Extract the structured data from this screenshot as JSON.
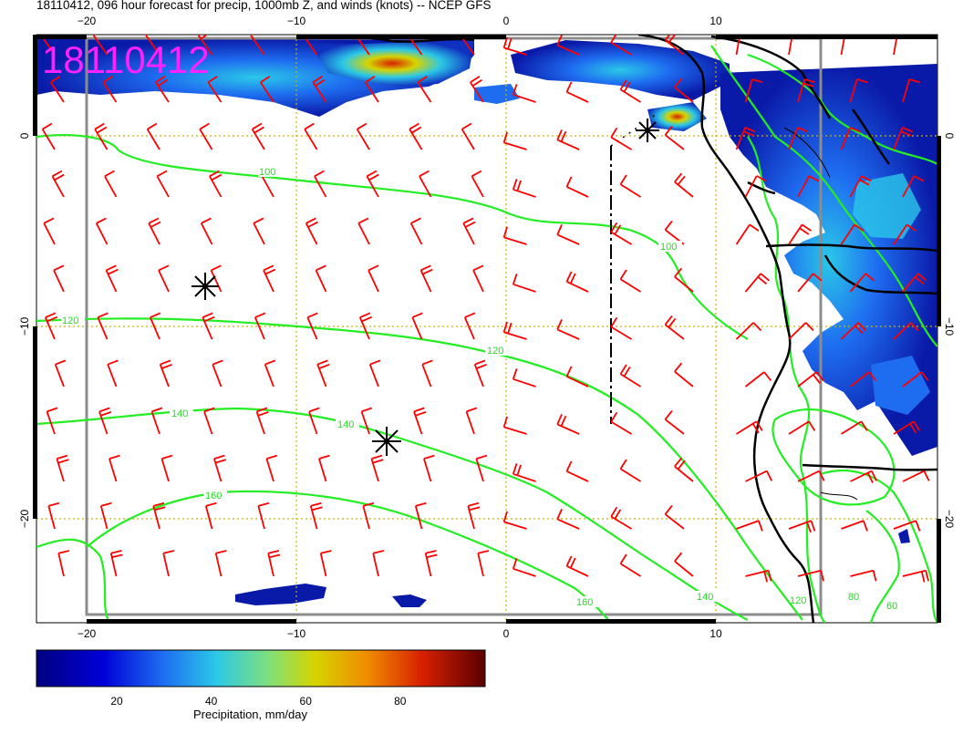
{
  "title": "18110412, 096 hour forecast for precip, 1000mb Z, and winds (knots) -- NCEP GFS",
  "stamp": "18110412",
  "axes": {
    "lon_ticks": [
      "−20",
      "−10",
      "0",
      "10"
    ],
    "lat_ticks_left": [
      "0",
      "−10",
      "−20"
    ],
    "lat_ticks_right": [
      "0",
      "−10",
      "−20"
    ]
  },
  "contour_labels": {
    "c100a": "100",
    "c100b": "100",
    "c120a": "120",
    "c120b": "120",
    "c140a": "140",
    "c140b": "140",
    "c140c": "140",
    "c160a": "160",
    "c160b": "160",
    "c120c": "120",
    "c80a": "80",
    "c60a": "60"
  },
  "colorbar": {
    "label": "Precipitation, mm/day",
    "ticks": [
      "20",
      "40",
      "60",
      "80"
    ],
    "tick_values": [
      20,
      40,
      60,
      80
    ],
    "range": [
      3,
      98
    ],
    "colors": [
      "#00007f",
      "#0000d8",
      "#1e6cf0",
      "#2bc8e8",
      "#80e07a",
      "#d6d400",
      "#f08a00",
      "#d62000",
      "#7f0000"
    ]
  },
  "colors": {
    "wind_barbs": "#ff0000",
    "contours": "#22ee22",
    "stamp": "#ff22ff",
    "grid": "#c8b400"
  },
  "icons": {
    "storm_marker": "asterisk-icon"
  }
}
